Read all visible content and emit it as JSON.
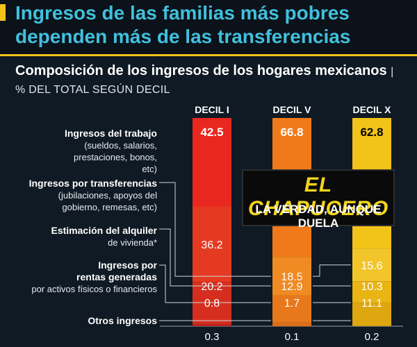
{
  "headline": "Ingresos de las familias más pobres dependen más de las transferencias",
  "subtitle": "Composición de los ingresos de los hogares mexicanos",
  "subtitle_unit": "% DEL TOTAL SEGÚN DECIL",
  "rows": [
    {
      "main": "Ingresos del trabajo",
      "sub": "(sueldos, salarios, prestaciones, bonos, etc)"
    },
    {
      "main": "Ingresos por transferencias",
      "sub": "(jubilaciones, apoyos del gobierno, remesas, etc)"
    },
    {
      "main": "Estimación del alquiler",
      "sub": "de vivienda*"
    },
    {
      "main": "Ingresos por rentas generadas",
      "sub": "por activos físicos o financieros"
    },
    {
      "main": "Otros ingresos",
      "sub": ""
    }
  ],
  "badge": {
    "name": "EL CHAPUCERO",
    "motto": "LA VERDAD, AUNQUE DUELA"
  },
  "colors": {
    "decil1": "#e8271f",
    "decilV": "#f07a1a",
    "decilX": "#f2c318",
    "accent": "#41c0dc"
  },
  "chart_data": {
    "type": "bar",
    "stacked": true,
    "categories": [
      "DECIL I",
      "DECIL V",
      "DECIL X"
    ],
    "series": [
      {
        "name": "Ingresos del trabajo",
        "values": [
          42.5,
          66.8,
          62.8
        ]
      },
      {
        "name": "Ingresos por transferencias",
        "values": [
          36.2,
          18.5,
          15.6
        ]
      },
      {
        "name": "Estimación del alquiler",
        "values": [
          20.2,
          12.9,
          10.3
        ]
      },
      {
        "name": "Ingresos por rentas generadas",
        "values": [
          0.8,
          1.7,
          11.1
        ]
      },
      {
        "name": "Otros ingresos",
        "values": [
          0.3,
          0.1,
          0.2
        ]
      }
    ],
    "ylim": [
      0,
      100
    ]
  }
}
